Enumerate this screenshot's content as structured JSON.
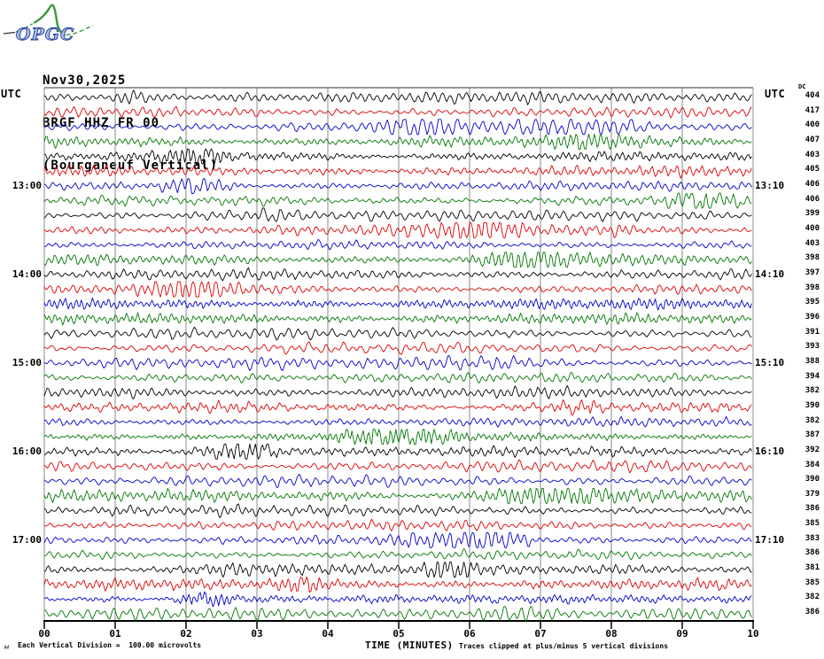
{
  "logo": {
    "text": "OPGC",
    "curve_color": "#3a9a3f",
    "text_fill": "#a8bce8",
    "text_outline": "#1c3a99"
  },
  "header": {
    "date": "Nov30,2025",
    "station": "BRGF HHZ FR 00",
    "location": "(Bourganeuf Vertical)"
  },
  "left_axis": {
    "header": "UTC",
    "labels": [
      {
        "row": 6,
        "text": "13:00"
      },
      {
        "row": 12,
        "text": "14:00"
      },
      {
        "row": 18,
        "text": "15:00"
      },
      {
        "row": 24,
        "text": "16:00"
      },
      {
        "row": 30,
        "text": "17:00"
      }
    ]
  },
  "right_axis": {
    "header": "UTC",
    "sub_header": "DC",
    "labels": [
      {
        "row": 6,
        "text": "13:10"
      },
      {
        "row": 12,
        "text": "14:10"
      },
      {
        "row": 18,
        "text": "15:10"
      },
      {
        "row": 24,
        "text": "16:10"
      },
      {
        "row": 30,
        "text": "17:10"
      }
    ]
  },
  "x_axis": {
    "title": "TIME (MINUTES)",
    "tick_labels": [
      "00",
      "01",
      "02",
      "03",
      "04",
      "05",
      "06",
      "07",
      "08",
      "09",
      "10"
    ],
    "minor_ticks_per_minute": 5
  },
  "footer": {
    "left_note": "Each Vertical Division =  100.00 microvolts",
    "right_note": "Traces clipped at plus/minus 5 vertical divisions",
    "corner_mark": "м"
  },
  "chart_data": {
    "type": "line",
    "kind": "helicorder-seismogram",
    "rows": 36,
    "minutes_per_row": 10,
    "x_range_minutes": [
      0,
      10
    ],
    "trace_colors_cycle": [
      "#000000",
      "#dd0000",
      "#0000cc",
      "#007700"
    ],
    "grid_color": "#888888",
    "axis_color": "#000000",
    "dc_values": [
      404,
      417,
      400,
      407,
      403,
      405,
      406,
      406,
      399,
      400,
      403,
      398,
      397,
      398,
      395,
      396,
      391,
      393,
      388,
      394,
      382,
      390,
      382,
      387,
      392,
      384,
      390,
      379,
      386,
      385,
      383,
      386,
      381,
      385,
      382,
      386
    ],
    "division_microvolts": "100.00",
    "clip_divisions": 5
  }
}
